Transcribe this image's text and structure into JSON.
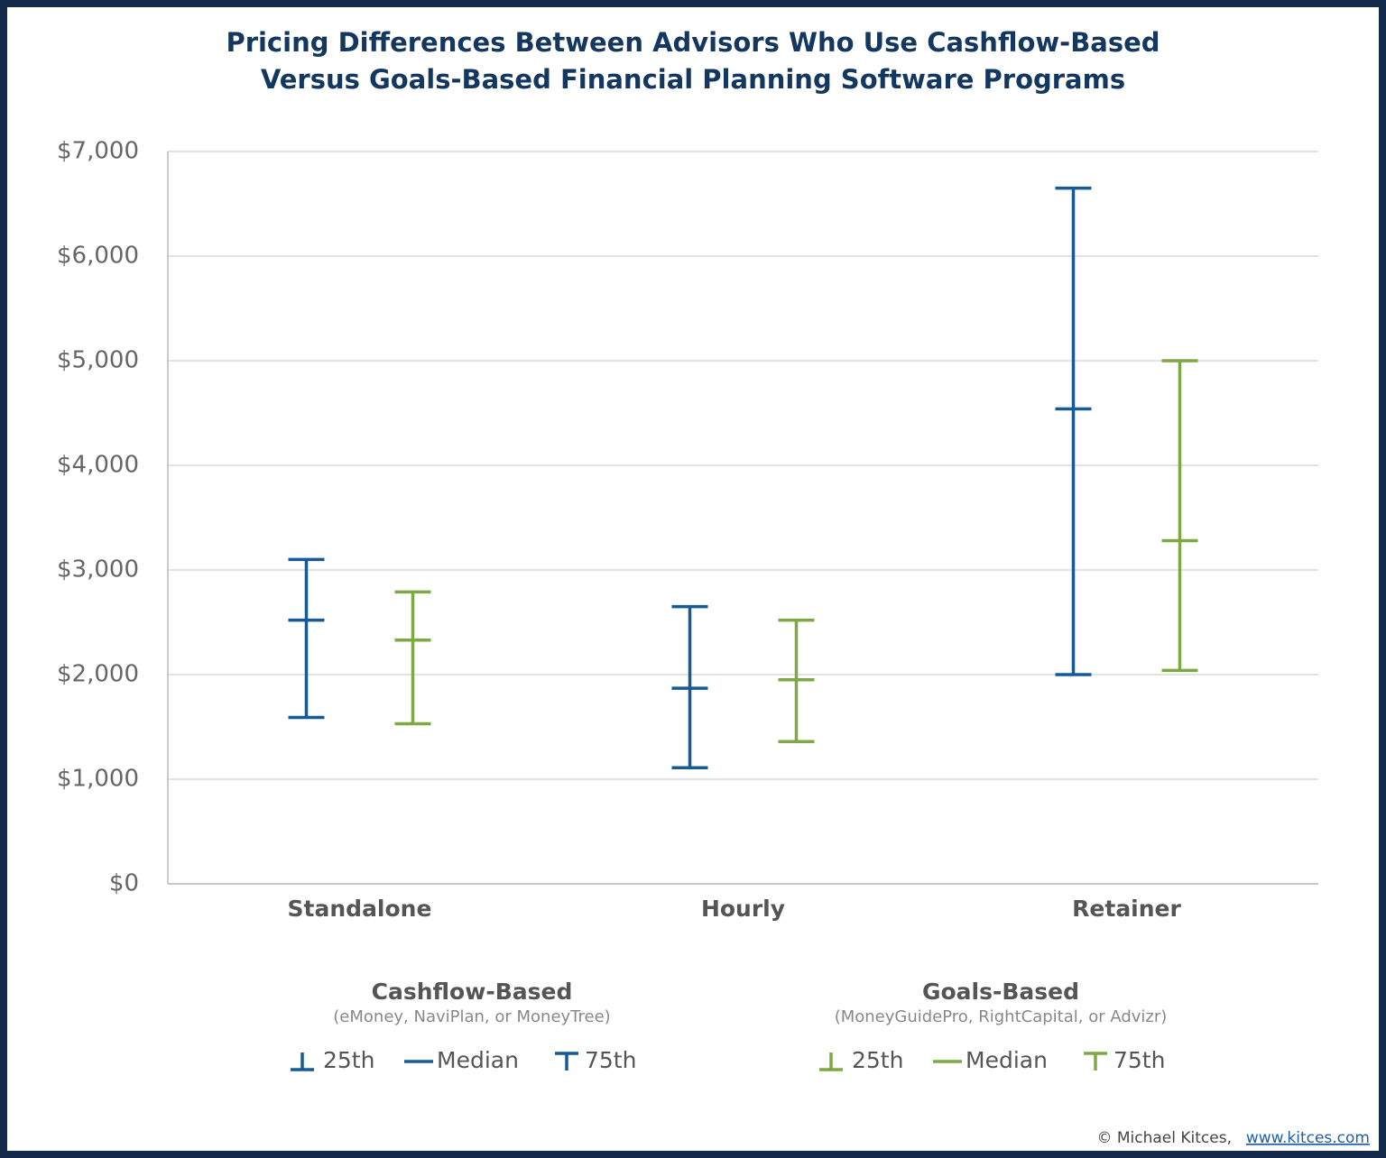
{
  "chart_data": {
    "type": "range",
    "title": [
      "Pricing Differences Between Advisors Who Use Cashflow-Based",
      "Versus Goals-Based Financial Planning Software Programs"
    ],
    "categories": [
      "Standalone",
      "Hourly",
      "Retainer"
    ],
    "series": [
      {
        "name": "Cashflow-Based",
        "subtitle": "(eMoney, NaviPlan, or MoneyTree)",
        "color": "#165a96",
        "stat_names": [
          "25th",
          "Median",
          "75th"
        ],
        "p25": [
          1590,
          1110,
          2000
        ],
        "median": [
          2520,
          1870,
          4540
        ],
        "p75": [
          3100,
          2650,
          6650
        ]
      },
      {
        "name": "Goals-Based",
        "subtitle": "(MoneyGuidePro, RightCapital, or Advizr)",
        "color": "#7ea843",
        "stat_names": [
          "25th",
          "Median",
          "75th"
        ],
        "p25": [
          1530,
          1360,
          2040
        ],
        "median": [
          2330,
          1950,
          3280
        ],
        "p75": [
          2790,
          2520,
          5000
        ]
      }
    ],
    "ylim": [
      0,
      7000
    ],
    "yticks": [
      {
        "value": 0,
        "label": "$0"
      },
      {
        "value": 1000,
        "label": "$1,000"
      },
      {
        "value": 2000,
        "label": "$2,000"
      },
      {
        "value": 3000,
        "label": "$3,000"
      },
      {
        "value": 4000,
        "label": "$4,000"
      },
      {
        "value": 5000,
        "label": "$5,000"
      },
      {
        "value": 6000,
        "label": "$6,000"
      },
      {
        "value": 7000,
        "label": "$7,000"
      }
    ],
    "grid": true
  },
  "credit": "© Michael Kitces,",
  "credit_link": "www.kitces.com"
}
